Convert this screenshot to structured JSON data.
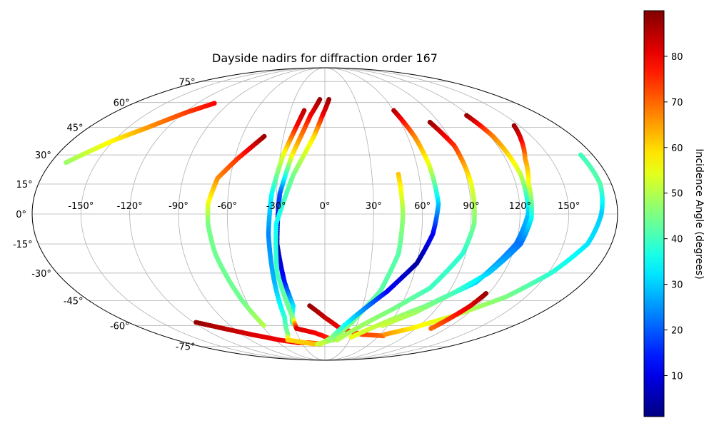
{
  "chart_data": {
    "type": "scatter",
    "projection": "mollweide",
    "title": "Dayside nadirs for diffraction order 167",
    "x_tick_labels": [
      "-150°",
      "-120°",
      "-90°",
      "-60°",
      "-30°",
      "0°",
      "30°",
      "60°",
      "90°",
      "120°",
      "150°"
    ],
    "x_tick_values": [
      -150,
      -120,
      -90,
      -60,
      -30,
      0,
      30,
      60,
      90,
      120,
      150
    ],
    "y_tick_labels": [
      "-75°",
      "-60°",
      "-45°",
      "-30°",
      "-15°",
      "0°",
      "15°",
      "30°",
      "45°",
      "60°",
      "75°"
    ],
    "y_tick_values": [
      -75,
      -60,
      -45,
      -30,
      -15,
      0,
      15,
      30,
      45,
      60,
      75
    ],
    "grid": true,
    "colormap": "jet",
    "colorbar": {
      "label": "Incidence Angle (degrees)",
      "range": [
        1,
        90
      ],
      "tick_values": [
        10,
        20,
        30,
        40,
        50,
        60,
        70,
        80
      ],
      "tick_labels": [
        "10",
        "20",
        "30",
        "40",
        "50",
        "60",
        "70",
        "80"
      ]
    },
    "series": [
      {
        "points": [
          [
            -104,
            59.5,
            79
          ],
          [
            -118,
            54,
            74
          ],
          [
            -135,
            45,
            66
          ],
          [
            -150,
            38,
            58
          ],
          [
            -170,
            26,
            48
          ]
        ]
      },
      {
        "points": [
          [
            -44,
            40,
            88
          ],
          [
            -58,
            28,
            75
          ],
          [
            -68,
            18,
            67
          ],
          [
            -72,
            5,
            55
          ],
          [
            -72,
            -5,
            45
          ],
          [
            -70,
            -20,
            44
          ],
          [
            -63,
            -45,
            44
          ],
          [
            -58,
            -60,
            50
          ]
        ]
      },
      {
        "points": [
          [
            -118,
            -58,
            88
          ],
          [
            -100,
            -62,
            85
          ],
          [
            -80,
            -66,
            82
          ],
          [
            -55,
            -70,
            80
          ],
          [
            -35,
            -72,
            78
          ],
          [
            -20,
            -72,
            74
          ],
          [
            -5,
            -73,
            70
          ]
        ]
      },
      {
        "points": [
          [
            -18,
            55,
            85
          ],
          [
            -22,
            45,
            78
          ],
          [
            -28,
            30,
            55
          ],
          [
            -33,
            10,
            35
          ],
          [
            -35,
            -10,
            24
          ],
          [
            -35,
            -35,
            28
          ],
          [
            -35,
            -55,
            38
          ],
          [
            -40,
            -66,
            45
          ],
          [
            -45,
            -70,
            60
          ],
          [
            -15,
            -73,
            62
          ]
        ]
      },
      {
        "points": [
          [
            -5,
            62,
            88
          ],
          [
            -12,
            52,
            80
          ],
          [
            -22,
            30,
            58
          ],
          [
            -28,
            10,
            20
          ],
          [
            -30,
            -15,
            4
          ],
          [
            -28,
            -35,
            14
          ],
          [
            -25,
            -48,
            32
          ],
          [
            -30,
            -58,
            40
          ],
          [
            -27,
            -62,
            48
          ]
        ]
      },
      {
        "points": [
          [
            4,
            62,
            88
          ],
          [
            -2,
            52,
            80
          ],
          [
            -8,
            40,
            60
          ],
          [
            -20,
            20,
            45
          ],
          [
            -30,
            -5,
            35
          ],
          [
            -32,
            -30,
            40
          ],
          [
            -28,
            -55,
            45
          ],
          [
            -28,
            -62,
            82
          ],
          [
            -10,
            -65,
            80
          ],
          [
            10,
            -70,
            74
          ]
        ]
      },
      {
        "points": [
          [
            -12,
            -48,
            88
          ],
          [
            0,
            -55,
            84
          ],
          [
            15,
            -62,
            80
          ],
          [
            40,
            -66,
            74
          ],
          [
            65,
            -67,
            70
          ]
        ]
      },
      {
        "points": [
          [
            47,
            20,
            62
          ],
          [
            48,
            0,
            48
          ],
          [
            47,
            -20,
            42
          ],
          [
            40,
            -40,
            42
          ],
          [
            25,
            -58,
            45
          ],
          [
            10,
            -70,
            48
          ],
          [
            -10,
            -73,
            52
          ]
        ]
      },
      {
        "points": [
          [
            60,
            55,
            86
          ],
          [
            65,
            40,
            68
          ],
          [
            68,
            25,
            55
          ],
          [
            70,
            5,
            30
          ],
          [
            67,
            -10,
            12
          ],
          [
            60,
            -25,
            4
          ],
          [
            45,
            -40,
            12
          ],
          [
            25,
            -55,
            30
          ],
          [
            8,
            -68,
            45
          ],
          [
            -5,
            -73,
            52
          ]
        ]
      },
      {
        "points": [
          [
            83,
            48,
            88
          ],
          [
            90,
            35,
            75
          ],
          [
            92,
            15,
            55
          ],
          [
            92,
            -5,
            45
          ],
          [
            88,
            -20,
            38
          ],
          [
            75,
            -38,
            40
          ],
          [
            55,
            -50,
            45
          ],
          [
            35,
            -60,
            48
          ],
          [
            15,
            -70,
            50
          ]
        ]
      },
      {
        "points": [
          [
            118,
            52,
            88
          ],
          [
            122,
            40,
            68
          ],
          [
            125,
            20,
            52
          ],
          [
            125,
            0,
            30
          ],
          [
            120,
            -15,
            22
          ],
          [
            105,
            -35,
            30
          ],
          [
            80,
            -48,
            44
          ],
          [
            55,
            -58,
            50
          ],
          [
            30,
            -68,
            55
          ]
        ]
      },
      {
        "points": [
          [
            146,
            46,
            88
          ],
          [
            140,
            38,
            80
          ],
          [
            133,
            28,
            66
          ],
          [
            128,
            15,
            55
          ],
          [
            127,
            -2,
            35
          ],
          [
            123,
            -15,
            22
          ],
          [
            110,
            -30,
            30
          ],
          [
            95,
            -40,
            40
          ],
          [
            75,
            -52,
            48
          ],
          [
            55,
            -60,
            52
          ]
        ]
      },
      {
        "points": [
          [
            172,
            30,
            40
          ],
          [
            173,
            15,
            42
          ],
          [
            170,
            0,
            30
          ],
          [
            165,
            -15,
            32
          ],
          [
            152,
            -30,
            38
          ],
          [
            135,
            -43,
            45
          ],
          [
            110,
            -54,
            52
          ],
          [
            85,
            -62,
            58
          ],
          [
            65,
            -66,
            66
          ]
        ]
      },
      {
        "points": [
          [
            118,
            -41,
            88
          ],
          [
            115,
            -48,
            82
          ],
          [
            110,
            -55,
            76
          ],
          [
            105,
            -62,
            70
          ]
        ]
      }
    ]
  }
}
